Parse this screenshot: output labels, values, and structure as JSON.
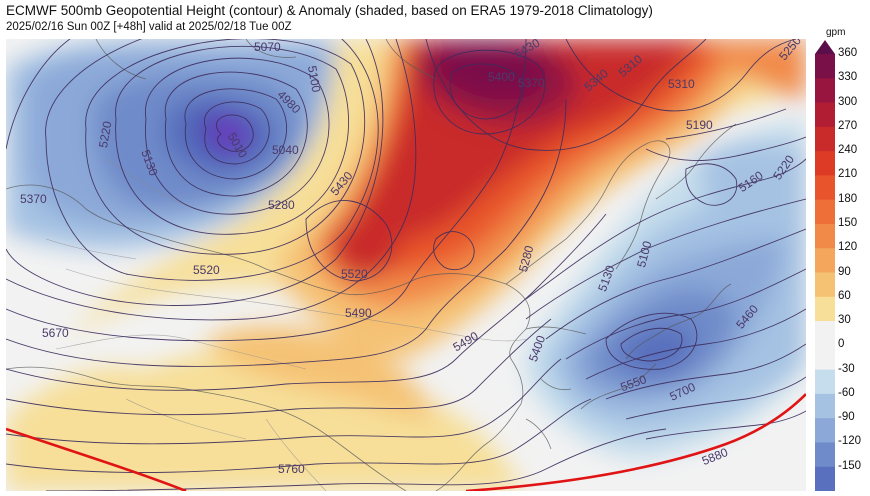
{
  "header": {
    "title": "ECMWF 500mb Geopotential Height (contour) & Anomaly (shaded, based on ERA5 1979-2018 Climatology)",
    "subtitle": "2025/02/16 Sun 00Z [+48h] valid at 2025/02/18 Tue 00Z"
  },
  "colorbar": {
    "unit": "gpm",
    "ticks": [
      "360",
      "330",
      "300",
      "270",
      "240",
      "210",
      "180",
      "150",
      "120",
      "90",
      "60",
      "30",
      "0",
      "-30",
      "-60",
      "-90",
      "-120",
      "-150"
    ],
    "colors": [
      "#5a0f4a",
      "#7a1048",
      "#981540",
      "#b11d33",
      "#c92a2a",
      "#dd3b26",
      "#e8552c",
      "#ee6f38",
      "#f18a48",
      "#f3a65c",
      "#f5c274",
      "#f7df99",
      "#f2f2f2",
      "#f2f2f2",
      "#c5ddec",
      "#a5c2e3",
      "#8ba8d8",
      "#6f8bc9",
      "#5870bd"
    ]
  },
  "map": {
    "contour_labels": [
      {
        "text": "5070"
      },
      {
        "text": "5100"
      },
      {
        "text": "4980"
      },
      {
        "text": "5010"
      },
      {
        "text": "5040"
      },
      {
        "text": "5130"
      },
      {
        "text": "5220"
      },
      {
        "text": "5370"
      },
      {
        "text": "5280"
      },
      {
        "text": "5430"
      },
      {
        "text": "5520"
      },
      {
        "text": "5520"
      },
      {
        "text": "5490"
      },
      {
        "text": "5490"
      },
      {
        "text": "5430"
      },
      {
        "text": "5400"
      },
      {
        "text": "5370"
      },
      {
        "text": "5340"
      },
      {
        "text": "5310"
      },
      {
        "text": "5310"
      },
      {
        "text": "5190"
      },
      {
        "text": "5160"
      },
      {
        "text": "5220"
      },
      {
        "text": "5280"
      },
      {
        "text": "5130"
      },
      {
        "text": "5100"
      },
      {
        "text": "5460"
      },
      {
        "text": "5400"
      },
      {
        "text": "5550"
      },
      {
        "text": "5700"
      },
      {
        "text": "5670"
      },
      {
        "text": "5760"
      },
      {
        "text": "5880"
      },
      {
        "text": "5250"
      }
    ]
  }
}
